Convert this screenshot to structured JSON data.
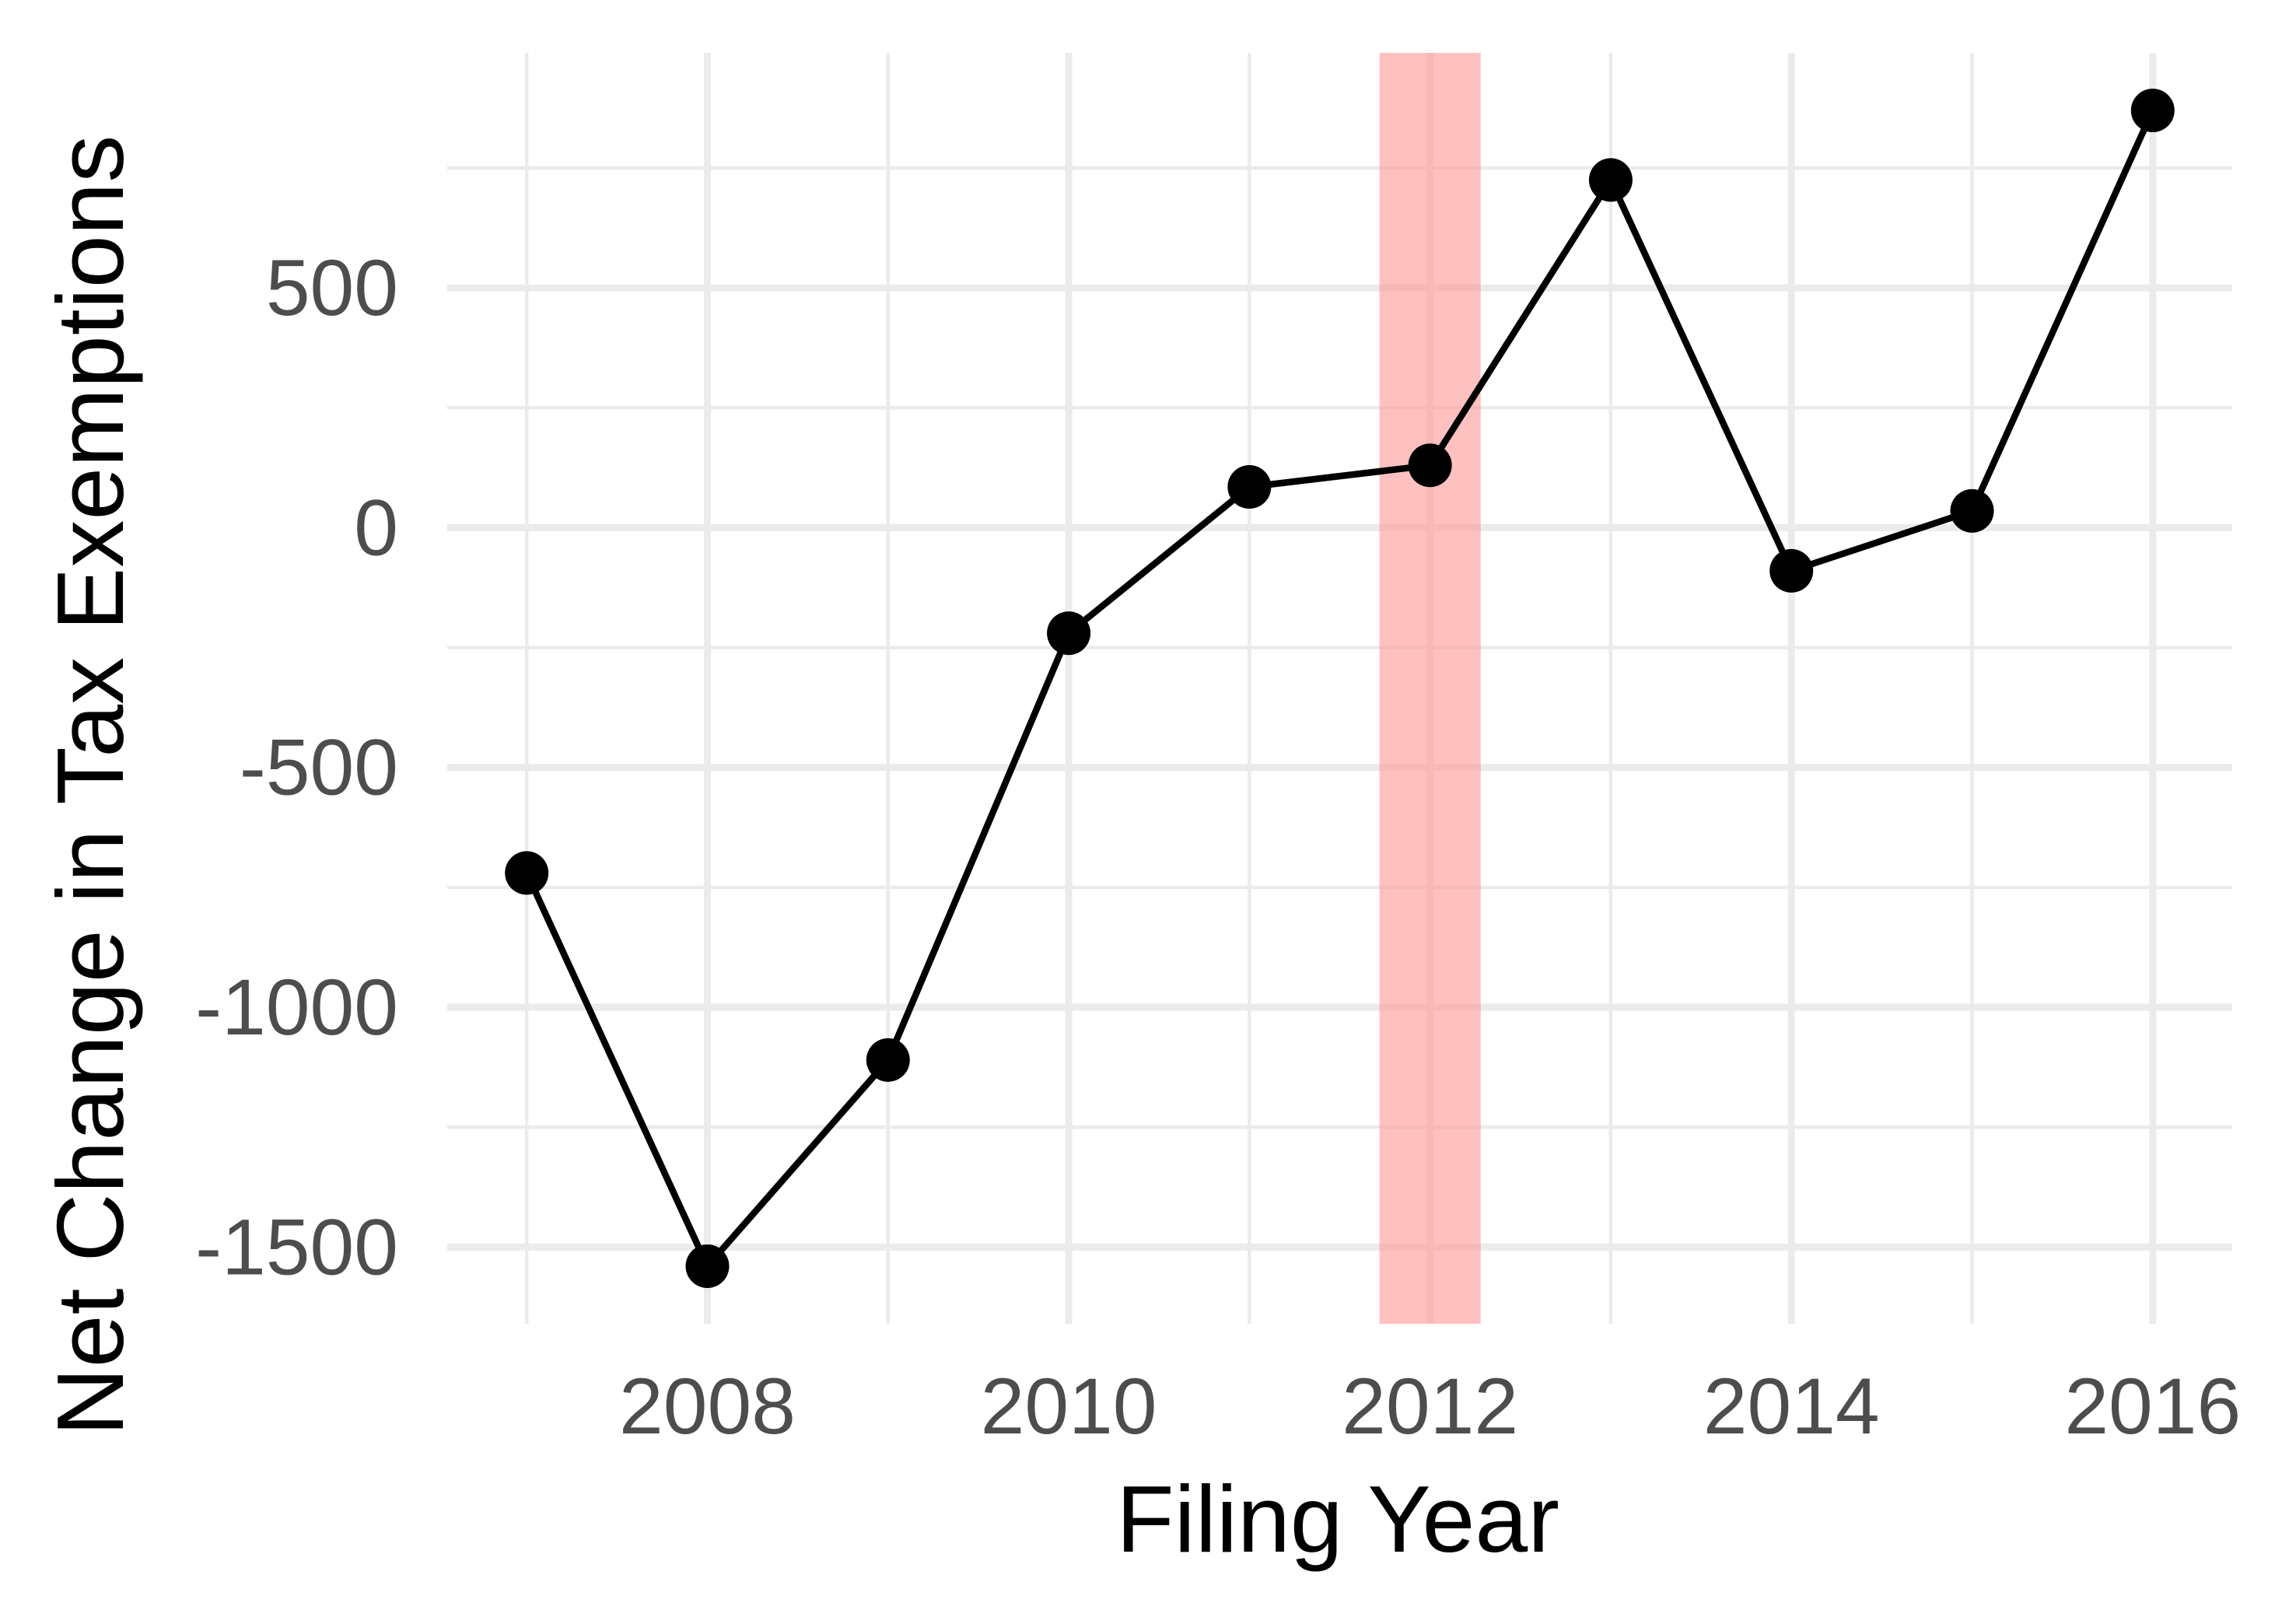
{
  "chart_data": {
    "type": "line",
    "title": "",
    "xlabel": "Filing Year",
    "ylabel": "Net Change in Tax Exemptions",
    "x": [
      2007,
      2008,
      2009,
      2010,
      2011,
      2012,
      2013,
      2014,
      2015,
      2016
    ],
    "series": [
      {
        "values": [
          -720,
          -1540,
          -1110,
          -220,
          85,
          130,
          725,
          -90,
          35,
          870
        ],
        "color": "#000000",
        "markers": true
      }
    ],
    "x_ticks": [
      2008,
      2010,
      2012,
      2014,
      2016
    ],
    "x_tick_labels": [
      "2008",
      "2010",
      "2012",
      "2014",
      "2016"
    ],
    "y_ticks": [
      -1500,
      -1000,
      -500,
      0,
      500
    ],
    "y_tick_labels": [
      "-1500",
      "-1000",
      "-500",
      "0",
      "500"
    ],
    "xlim": [
      2006.56,
      2016.44
    ],
    "ylim": [
      -1660,
      990
    ],
    "grid": true,
    "legend": "none",
    "highlight_band": {
      "x_range": [
        2011.72,
        2012.28
      ],
      "color": "#ff9999"
    }
  }
}
